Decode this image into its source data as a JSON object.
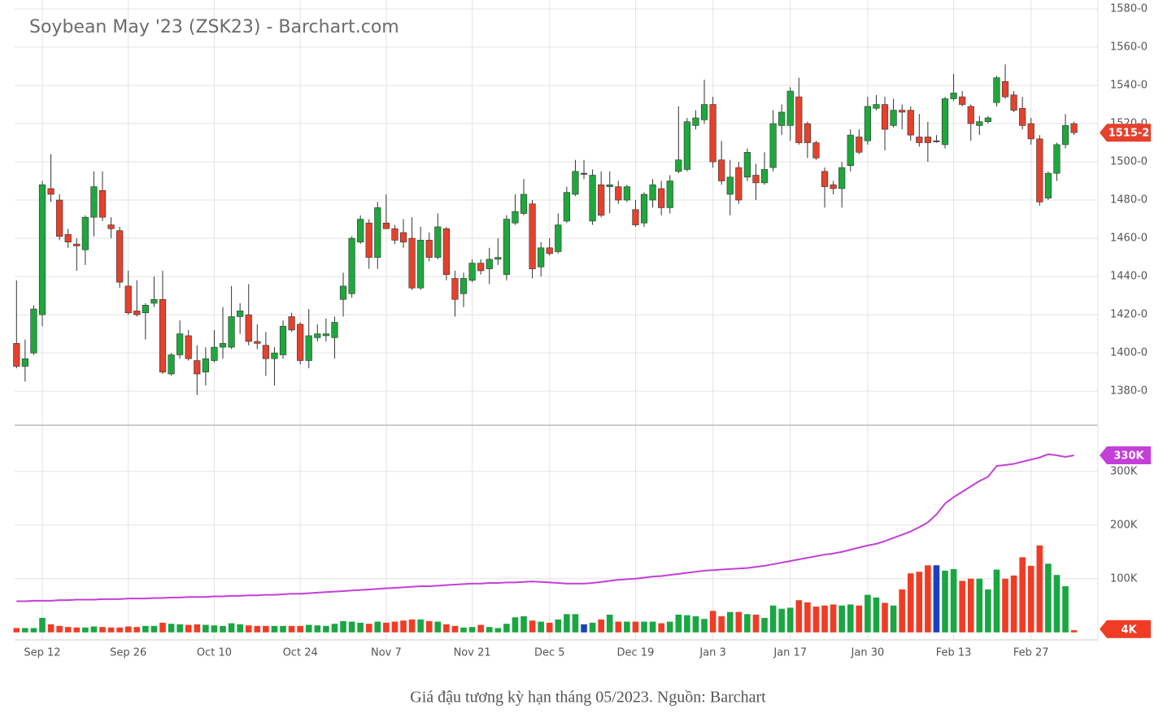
{
  "chart_data": [
    {
      "type": "candlestick",
      "title": "Soybean May '23 (ZSK23) - Barchart.com",
      "open": [
        1405,
        1393,
        1400,
        1420,
        1486,
        1480,
        1462,
        1457,
        1454,
        1471,
        1485,
        1467,
        1464,
        1435,
        1422,
        1421,
        1426,
        1428,
        1389,
        1399,
        1409,
        1396,
        1390,
        1396,
        1403,
        1403,
        1419,
        1420,
        1406,
        1404,
        1397,
        1399,
        1419,
        1415,
        1396,
        1408,
        1409,
        1408,
        1428,
        1431,
        1458,
        1468,
        1450,
        1468,
        1465,
        1463,
        1460,
        1434,
        1459,
        1450,
        1465,
        1439,
        1431,
        1438,
        1447,
        1444,
        1449,
        1441,
        1468,
        1473,
        1478,
        1445,
        1455,
        1453,
        1469,
        1483,
        1494,
        1469,
        1488,
        1487,
        1487,
        1480,
        1475,
        1468,
        1480,
        1486,
        1476,
        1495,
        1496,
        1519,
        1522,
        1530,
        1501,
        1483,
        1497,
        1492,
        1493,
        1489,
        1497,
        1519,
        1519,
        1534,
        1520,
        1510,
        1495,
        1488,
        1486,
        1498,
        1513,
        1511,
        1528,
        1530,
        1519,
        1527,
        1527,
        1513,
        1513,
        1511,
        1509,
        1533,
        1534,
        1529,
        1519,
        1521,
        1531,
        1542,
        1535,
        1528,
        1520,
        1512,
        1481,
        1494,
        1509,
        1520
      ],
      "high": [
        1438,
        1407,
        1425,
        1490,
        1504,
        1483,
        1465,
        1460,
        1472,
        1495,
        1495,
        1471,
        1466,
        1443,
        1438,
        1426,
        1440,
        1443,
        1400,
        1417,
        1412,
        1404,
        1403,
        1412,
        1424,
        1435,
        1426,
        1436,
        1415,
        1411,
        1403,
        1417,
        1421,
        1416,
        1423,
        1415,
        1418,
        1419,
        1442,
        1461,
        1472,
        1470,
        1479,
        1483,
        1467,
        1470,
        1471,
        1466,
        1463,
        1473,
        1466,
        1443,
        1442,
        1449,
        1449,
        1455,
        1460,
        1472,
        1483,
        1491,
        1480,
        1458,
        1460,
        1473,
        1487,
        1501,
        1501,
        1496,
        1495,
        1495,
        1490,
        1488,
        1480,
        1484,
        1491,
        1490,
        1493,
        1529,
        1523,
        1527,
        1543,
        1534,
        1511,
        1501,
        1500,
        1507,
        1499,
        1505,
        1527,
        1530,
        1539,
        1544,
        1521,
        1511,
        1497,
        1490,
        1500,
        1517,
        1517,
        1534,
        1535,
        1534,
        1533,
        1530,
        1529,
        1525,
        1521,
        1514,
        1534,
        1546,
        1537,
        1530,
        1524,
        1524,
        1545,
        1551,
        1537,
        1534,
        1523,
        1514,
        1495,
        1510,
        1525,
        1521
      ],
      "low": [
        1392,
        1385,
        1399,
        1414,
        1479,
        1459,
        1455,
        1443,
        1446,
        1461,
        1469,
        1460,
        1434,
        1420,
        1419,
        1407,
        1424,
        1389,
        1388,
        1397,
        1396,
        1378,
        1383,
        1395,
        1397,
        1402,
        1410,
        1404,
        1402,
        1388,
        1383,
        1397,
        1411,
        1394,
        1392,
        1406,
        1406,
        1397,
        1419,
        1429,
        1457,
        1444,
        1444,
        1465,
        1457,
        1455,
        1433,
        1433,
        1448,
        1449,
        1438,
        1419,
        1424,
        1437,
        1441,
        1436,
        1446,
        1438,
        1467,
        1472,
        1439,
        1440,
        1451,
        1452,
        1468,
        1482,
        1491,
        1467,
        1471,
        1473,
        1478,
        1479,
        1466,
        1466,
        1476,
        1472,
        1473,
        1494,
        1495,
        1517,
        1520,
        1497,
        1488,
        1472,
        1478,
        1490,
        1480,
        1488,
        1495,
        1514,
        1511,
        1509,
        1502,
        1501,
        1476,
        1483,
        1476,
        1495,
        1504,
        1509,
        1527,
        1506,
        1518,
        1517,
        1511,
        1508,
        1500,
        1510,
        1507,
        1532,
        1529,
        1511,
        1514,
        1520,
        1529,
        1533,
        1526,
        1517,
        1509,
        1477,
        1480,
        1490,
        1507,
        1514
      ],
      "close": [
        1393,
        1397,
        1423,
        1488,
        1483,
        1461,
        1458,
        1456,
        1471,
        1487,
        1471,
        1465,
        1437,
        1421,
        1420,
        1425,
        1428,
        1390,
        1399,
        1410,
        1397,
        1389,
        1397,
        1403,
        1405,
        1419,
        1422,
        1406,
        1405,
        1397,
        1400,
        1414,
        1412,
        1396,
        1409,
        1410,
        1410,
        1416,
        1435,
        1460,
        1470,
        1450,
        1476,
        1465,
        1459,
        1458,
        1434,
        1459,
        1450,
        1466,
        1441,
        1428,
        1439,
        1447,
        1443,
        1449,
        1450,
        1470,
        1474,
        1483,
        1444,
        1455,
        1452,
        1467,
        1484,
        1495,
        1494,
        1493,
        1472,
        1488,
        1480,
        1487,
        1467,
        1483,
        1488,
        1476,
        1490,
        1501,
        1521,
        1523,
        1530,
        1500,
        1490,
        1492,
        1480,
        1505,
        1489,
        1496,
        1520,
        1526,
        1537,
        1510,
        1510,
        1502,
        1487,
        1486,
        1497,
        1514,
        1505,
        1529,
        1530,
        1517,
        1527,
        1526,
        1514,
        1510,
        1510,
        1511,
        1533,
        1536,
        1530,
        1520,
        1521,
        1523,
        1544,
        1534,
        1527,
        1519,
        1512,
        1479,
        1494,
        1509,
        1519,
        1515.25
      ],
      "end_label": "1515-2",
      "up_color": "#1ea83c",
      "down_color": "#e5412d",
      "flat_color": "#333333",
      "ylim": [
        1362.6,
        1580
      ],
      "yticks": [
        {
          "value": 1580,
          "label": "1580-0"
        },
        {
          "value": 1560,
          "label": "1560-0"
        },
        {
          "value": 1540,
          "label": "1540-0"
        },
        {
          "value": 1520,
          "label": "1520-0"
        },
        {
          "value": 1500,
          "label": "1500-0"
        },
        {
          "value": 1480,
          "label": "1480-0"
        },
        {
          "value": 1460,
          "label": "1460-0"
        },
        {
          "value": 1440,
          "label": "1440-0"
        },
        {
          "value": 1420,
          "label": "1420-0"
        },
        {
          "value": 1400,
          "label": "1400-0"
        },
        {
          "value": 1380,
          "label": "1380-0"
        }
      ],
      "grid": true
    },
    {
      "type": "bar",
      "categories": [
        null,
        null,
        null,
        "Sep 12",
        null,
        null,
        null,
        null,
        null,
        null,
        null,
        null,
        null,
        "Sep 26",
        null,
        null,
        null,
        null,
        null,
        null,
        null,
        null,
        null,
        "Oct 10",
        null,
        null,
        null,
        null,
        null,
        null,
        null,
        null,
        null,
        "Oct 24",
        null,
        null,
        null,
        null,
        null,
        null,
        null,
        null,
        null,
        "Nov 7",
        null,
        null,
        null,
        null,
        null,
        null,
        null,
        null,
        null,
        "Nov 21",
        null,
        null,
        null,
        null,
        null,
        null,
        null,
        null,
        "Dec 5",
        null,
        null,
        null,
        null,
        null,
        null,
        null,
        null,
        null,
        "Dec 19",
        null,
        null,
        null,
        null,
        null,
        null,
        null,
        null,
        "Jan 3",
        null,
        null,
        null,
        null,
        null,
        null,
        null,
        null,
        "Jan 17",
        null,
        null,
        null,
        null,
        null,
        null,
        null,
        null,
        "Jan 30",
        null,
        null,
        null,
        null,
        null,
        null,
        null,
        null,
        null,
        "Feb 13",
        null,
        null,
        null,
        null,
        null,
        null,
        null,
        null,
        "Feb 27",
        null,
        null,
        null,
        null,
        null
      ],
      "series": [
        {
          "type": "bar",
          "up_color": "#1aa643",
          "down_color": "#f03c24",
          "flat_color": "#1c3fc0",
          "end_color": "#f03c24",
          "end_label": "4K",
          "values": [
            8000,
            8000,
            8000,
            27000,
            15000,
            12000,
            10000,
            9000,
            9000,
            11000,
            10000,
            9000,
            9000,
            11000,
            10000,
            12000,
            12000,
            18000,
            16000,
            15000,
            14000,
            15000,
            14000,
            13000,
            12000,
            17000,
            15000,
            13000,
            12000,
            12000,
            12000,
            12000,
            12000,
            12000,
            14000,
            13000,
            12000,
            16000,
            21000,
            20000,
            18000,
            16000,
            20000,
            18000,
            20000,
            22000,
            24000,
            24000,
            21000,
            20000,
            15000,
            12000,
            9000,
            10000,
            14000,
            10000,
            8000,
            16000,
            28000,
            30000,
            22000,
            20000,
            18000,
            24000,
            34000,
            34000,
            15000,
            18000,
            24000,
            33000,
            20000,
            20000,
            20000,
            20000,
            20000,
            17000,
            20000,
            33000,
            32000,
            30000,
            25000,
            40000,
            30000,
            38000,
            38000,
            34000,
            33000,
            27000,
            50000,
            44000,
            46000,
            60000,
            56000,
            48000,
            50000,
            52000,
            50000,
            52000,
            50000,
            70000,
            65000,
            55000,
            50000,
            80000,
            110000,
            113000,
            125000,
            125000,
            115000,
            118000,
            96000,
            100000,
            100000,
            80000,
            117000,
            100000,
            106000,
            140000,
            124000,
            162000,
            128000,
            107000,
            86000,
            4000
          ]
        },
        {
          "type": "line",
          "color": "#c43fd8",
          "end_label": "330K",
          "values": [
            58000,
            58000,
            59000,
            59000,
            59000,
            60000,
            60000,
            61000,
            61000,
            61000,
            62000,
            62000,
            62000,
            63000,
            63000,
            63000,
            64000,
            64000,
            65000,
            65000,
            66000,
            66000,
            66000,
            67000,
            67000,
            68000,
            68000,
            69000,
            69000,
            70000,
            70000,
            71000,
            72000,
            72000,
            73000,
            74000,
            75000,
            76000,
            77000,
            78000,
            79000,
            80000,
            81000,
            82000,
            83000,
            84000,
            85000,
            86000,
            86000,
            87000,
            88000,
            89000,
            90000,
            91000,
            91000,
            92000,
            92000,
            93000,
            93000,
            94000,
            95000,
            94000,
            93000,
            92000,
            91000,
            91000,
            91000,
            92000,
            94000,
            96000,
            98000,
            99000,
            100000,
            102000,
            104000,
            105000,
            107000,
            109000,
            111000,
            113000,
            115000,
            116000,
            117000,
            118000,
            119000,
            120000,
            122000,
            124000,
            127000,
            130000,
            133000,
            136000,
            139000,
            142000,
            145000,
            147000,
            150000,
            154000,
            158000,
            162000,
            165000,
            170000,
            176000,
            182000,
            188000,
            196000,
            205000,
            220000,
            240000,
            252000,
            262000,
            272000,
            282000,
            290000,
            310000,
            312000,
            314000,
            318000,
            322000,
            326000,
            332000,
            330000,
            327000,
            330000
          ]
        }
      ],
      "ylim": [
        -14000,
        383000
      ],
      "yticks": [
        {
          "value": 300000,
          "label": "300K"
        },
        {
          "value": 200000,
          "label": "200K"
        },
        {
          "value": 100000,
          "label": "100K"
        }
      ],
      "grid": true
    }
  ],
  "caption": "Giá đậu tương kỳ hạn tháng 05/2023. Nguồn: Barchart"
}
